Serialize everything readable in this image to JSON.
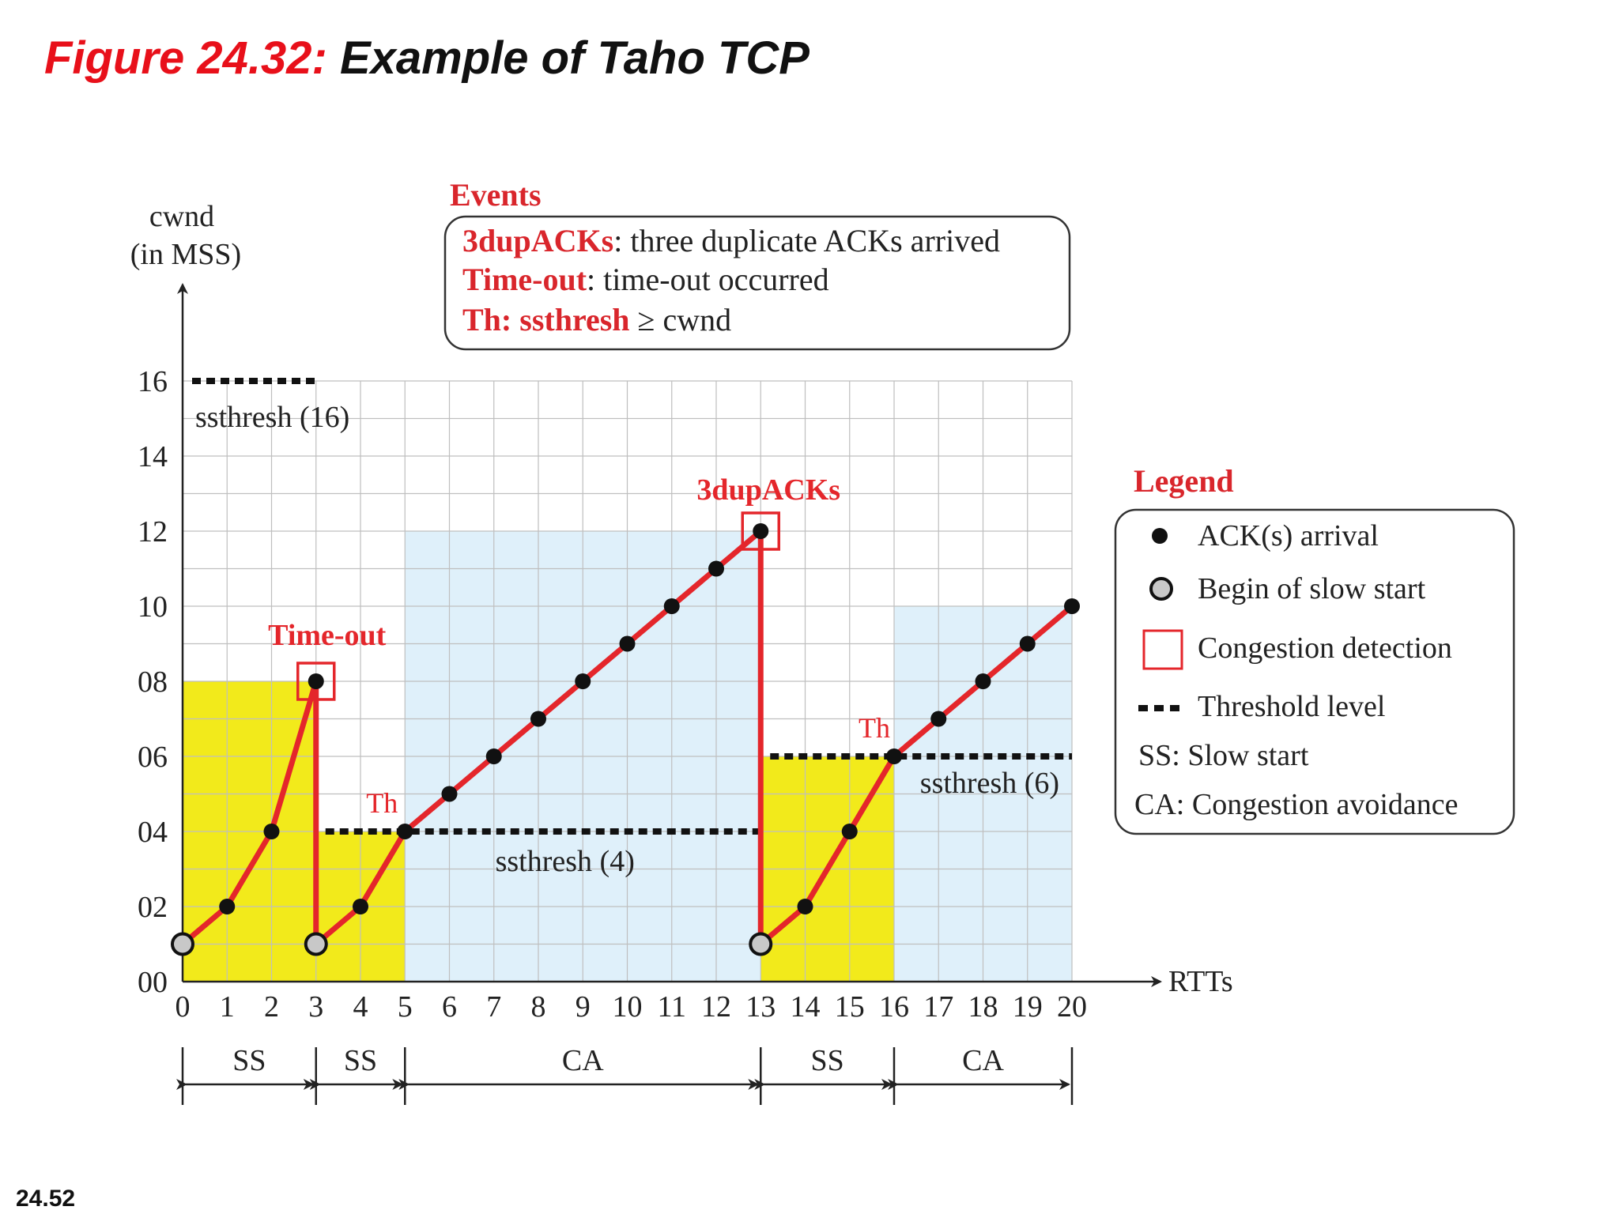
{
  "title": {
    "prefix": "Figure 24.32:",
    "main": "Example of Taho TCP"
  },
  "slide_number": "24.52",
  "colors": {
    "red": "#e4262b",
    "yellow": "#f2ea1b",
    "light_blue": "#dff0fa",
    "gray_dot": "#c8c8c8",
    "grid": "#bfbfbf"
  },
  "chart_data": {
    "type": "line",
    "ylabel": [
      "cwnd",
      "(in MSS)"
    ],
    "xlabel": "RTTs",
    "ylim": [
      0,
      16
    ],
    "xlim": [
      0,
      20
    ],
    "y_ticks": [
      "00",
      "02",
      "04",
      "06",
      "08",
      "10",
      "12",
      "14",
      "16"
    ],
    "x_ticks": [
      "0",
      "1",
      "2",
      "3",
      "4",
      "5",
      "6",
      "7",
      "8",
      "9",
      "10",
      "11",
      "12",
      "13",
      "14",
      "15",
      "16",
      "17",
      "18",
      "19",
      "20"
    ],
    "grid": true,
    "series": [
      {
        "points": [
          [
            0,
            1
          ],
          [
            1,
            2
          ],
          [
            2,
            4
          ],
          [
            3,
            8
          ],
          [
            3,
            1
          ],
          [
            4,
            2
          ],
          [
            5,
            4
          ],
          [
            6,
            5
          ],
          [
            7,
            6
          ],
          [
            8,
            7
          ],
          [
            9,
            8
          ],
          [
            10,
            9
          ],
          [
            11,
            10
          ],
          [
            12,
            11
          ],
          [
            13,
            12
          ],
          [
            13,
            1
          ],
          [
            14,
            2
          ],
          [
            15,
            4
          ],
          [
            16,
            6
          ],
          [
            17,
            7
          ],
          [
            18,
            8
          ],
          [
            19,
            9
          ],
          [
            20,
            10
          ]
        ]
      }
    ],
    "ack_points": [
      [
        1,
        2
      ],
      [
        2,
        4
      ],
      [
        3,
        8
      ],
      [
        4,
        2
      ],
      [
        5,
        4
      ],
      [
        6,
        5
      ],
      [
        7,
        6
      ],
      [
        8,
        7
      ],
      [
        9,
        8
      ],
      [
        10,
        9
      ],
      [
        11,
        10
      ],
      [
        12,
        11
      ],
      [
        13,
        12
      ],
      [
        14,
        2
      ],
      [
        15,
        4
      ],
      [
        16,
        6
      ],
      [
        17,
        7
      ],
      [
        18,
        8
      ],
      [
        19,
        9
      ],
      [
        20,
        10
      ]
    ],
    "slow_start_points": [
      [
        0,
        1
      ],
      [
        3,
        1
      ],
      [
        13,
        1
      ]
    ],
    "congestion_points": [
      [
        3,
        8
      ],
      [
        13,
        12
      ]
    ],
    "regions": [
      {
        "type": "SS",
        "x": [
          0,
          3
        ],
        "y_top": 8
      },
      {
        "type": "SS",
        "x": [
          3,
          5
        ],
        "y_top": 4
      },
      {
        "type": "CA",
        "x": [
          5,
          13
        ],
        "y_top": 12
      },
      {
        "type": "SS",
        "x": [
          13,
          16
        ],
        "y_top": 6
      },
      {
        "type": "CA",
        "x": [
          16,
          20
        ],
        "y_top": 10
      }
    ],
    "thresholds": [
      {
        "value": 16,
        "x": [
          0,
          3
        ],
        "label": "ssthresh (16)"
      },
      {
        "value": 4,
        "x": [
          3,
          13
        ],
        "label": "ssthresh (4)"
      },
      {
        "value": 6,
        "x": [
          13,
          20
        ],
        "label": "ssthresh (6)"
      }
    ],
    "annotations": [
      {
        "text": "Time-out",
        "x": 3,
        "y": 8
      },
      {
        "text": "3dupACKs",
        "x": 13,
        "y": 12
      },
      {
        "text": "Th",
        "x": 5,
        "y": 4
      },
      {
        "text": "Th",
        "x": 16,
        "y": 6
      }
    ],
    "phases": [
      {
        "label": "SS",
        "from": 0,
        "to": 3
      },
      {
        "label": "SS",
        "from": 3,
        "to": 5
      },
      {
        "label": "CA",
        "from": 5,
        "to": 13
      },
      {
        "label": "SS",
        "from": 13,
        "to": 16
      },
      {
        "label": "CA",
        "from": 16,
        "to": 20
      }
    ]
  },
  "events": {
    "heading": "Events",
    "items": [
      {
        "term": "3dupACKs",
        "sep": ":",
        "desc": " three duplicate ACKs arrived"
      },
      {
        "term": "Time-out",
        "sep": ":",
        "desc": " time-out occurred"
      },
      {
        "term": "Th: ssthresh",
        "sep": "",
        "desc": " ≥  cwnd"
      }
    ]
  },
  "legend": {
    "heading": "Legend",
    "items": [
      {
        "icon": "ack-dot-icon",
        "text": "ACK(s) arrival"
      },
      {
        "icon": "slow-start-circle-icon",
        "text": "Begin of slow start"
      },
      {
        "icon": "congestion-square-icon",
        "text": "Congestion detection"
      },
      {
        "icon": "threshold-dots-icon",
        "text": "Threshold level"
      },
      {
        "icon": "",
        "text": "SS: Slow start"
      },
      {
        "icon": "",
        "text": "CA: Congestion avoidance"
      }
    ]
  }
}
